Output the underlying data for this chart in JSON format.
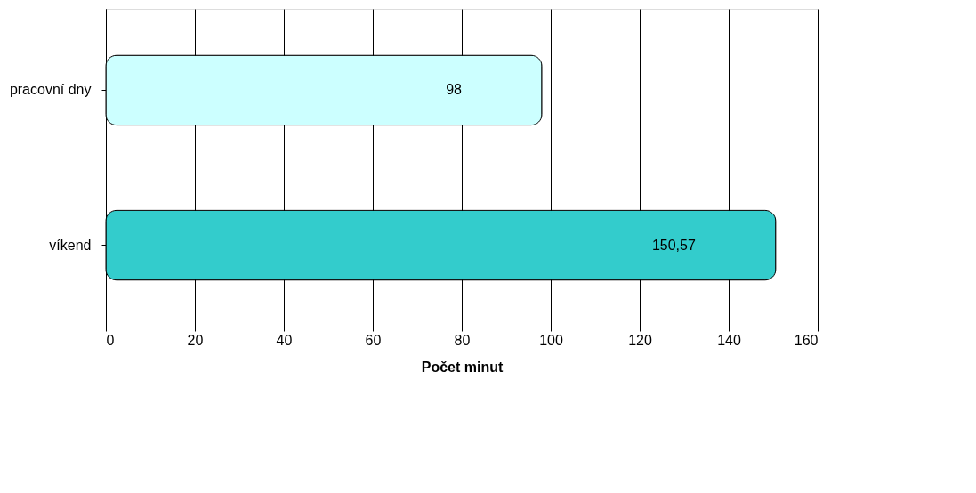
{
  "chart_data": {
    "type": "bar",
    "orientation": "horizontal",
    "categories": [
      "pracovní dny",
      "víkend"
    ],
    "values": [
      98,
      150.57
    ],
    "colors": [
      "#ccffff",
      "#33cccc"
    ],
    "value_labels": [
      "98",
      "150,57"
    ],
    "xlabel": "Počet minut",
    "xlim": [
      0,
      160
    ],
    "xticks": [
      0,
      20,
      40,
      60,
      80,
      100,
      120,
      140,
      160
    ],
    "grid": "x"
  }
}
